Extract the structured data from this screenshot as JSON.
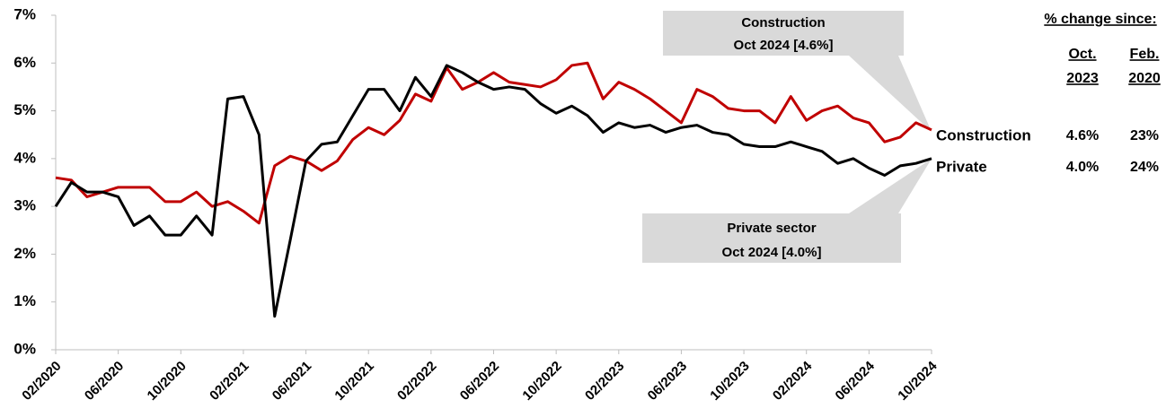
{
  "chart_data": {
    "type": "line",
    "categories": [
      "02/2020",
      null,
      null,
      null,
      "06/2020",
      null,
      null,
      null,
      "10/2020",
      null,
      null,
      null,
      "02/2021",
      null,
      null,
      null,
      "06/2021",
      null,
      null,
      null,
      "10/2021",
      null,
      null,
      null,
      "02/2022",
      null,
      null,
      null,
      "06/2022",
      null,
      null,
      null,
      "10/2022",
      null,
      null,
      null,
      "02/2023",
      null,
      null,
      null,
      "06/2023",
      null,
      null,
      null,
      "10/2023",
      null,
      null,
      null,
      "02/2024",
      null,
      null,
      null,
      "06/2024",
      null,
      null,
      null,
      "10/2024"
    ],
    "series": [
      {
        "name": "Construction",
        "color": "#c00000",
        "values": [
          3.6,
          3.55,
          3.2,
          3.3,
          3.4,
          3.4,
          3.4,
          3.1,
          3.1,
          3.3,
          3.0,
          3.1,
          2.9,
          2.65,
          3.85,
          4.05,
          3.95,
          3.75,
          3.95,
          4.4,
          4.65,
          4.5,
          4.8,
          5.35,
          5.2,
          5.9,
          5.45,
          5.6,
          5.8,
          5.6,
          5.55,
          5.5,
          5.65,
          5.95,
          6.0,
          5.25,
          5.6,
          5.45,
          5.25,
          5.0,
          4.75,
          5.45,
          5.3,
          5.05,
          5.0,
          5.0,
          4.75,
          5.3,
          4.8,
          5.0,
          5.1,
          4.85,
          4.75,
          4.35,
          4.45,
          4.75,
          4.6
        ]
      },
      {
        "name": "Private",
        "color": "#000000",
        "values": [
          3.0,
          3.5,
          3.3,
          3.3,
          3.2,
          2.6,
          2.8,
          2.4,
          2.4,
          2.8,
          2.4,
          5.25,
          5.3,
          4.5,
          0.7,
          2.3,
          3.95,
          4.3,
          4.35,
          4.9,
          5.45,
          5.45,
          5.0,
          5.7,
          5.3,
          5.95,
          5.8,
          5.6,
          5.45,
          5.5,
          5.45,
          5.15,
          4.95,
          5.1,
          4.9,
          4.55,
          4.75,
          4.65,
          4.7,
          4.55,
          4.65,
          4.7,
          4.55,
          4.5,
          4.3,
          4.25,
          4.25,
          4.35,
          4.25,
          4.15,
          3.9,
          4.0,
          3.8,
          3.65,
          3.85,
          3.9,
          4.0
        ]
      }
    ],
    "ylim": [
      0,
      7
    ],
    "yticks": [
      {
        "value": 0,
        "label": "0%"
      },
      {
        "value": 1,
        "label": "1%"
      },
      {
        "value": 2,
        "label": "2%"
      },
      {
        "value": 3,
        "label": "3%"
      },
      {
        "value": 4,
        "label": "4%"
      },
      {
        "value": 5,
        "label": "5%"
      },
      {
        "value": 6,
        "label": "6%"
      },
      {
        "value": 7,
        "label": "7%"
      }
    ],
    "grid": false,
    "annotations": [
      {
        "lines": [
          "Construction",
          "Oct 2024 [4.6%]"
        ]
      },
      {
        "lines": [
          "Private sector",
          "Oct 2024 [4.0%]"
        ]
      }
    ],
    "table": {
      "title": "% change since:",
      "columns": [
        [
          "Oct.",
          "2023"
        ],
        [
          "Feb.",
          "2020"
        ]
      ],
      "rows": [
        [
          "4.6%",
          "23%"
        ],
        [
          "4.0%",
          "24%"
        ]
      ]
    }
  }
}
